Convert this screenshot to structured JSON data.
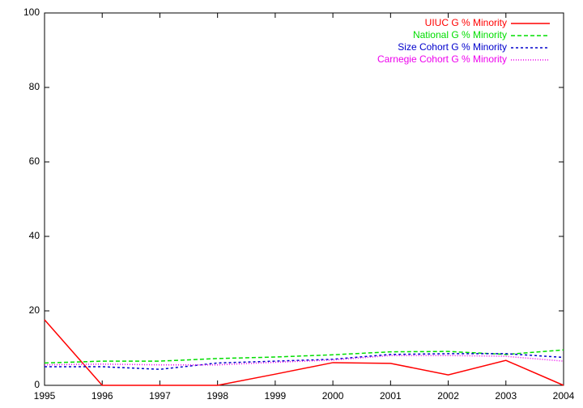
{
  "chart_data": {
    "type": "line",
    "x": [
      1995,
      1996,
      1997,
      1998,
      1999,
      2000,
      2001,
      2002,
      2003,
      2004
    ],
    "series": [
      {
        "name": "UIUC G % Minority",
        "color": "#ff0000",
        "values": [
          17.6,
          0,
          0,
          0,
          3.0,
          6.1,
          5.9,
          2.8,
          6.7,
          0
        ]
      },
      {
        "name": "National G % Minority",
        "color": "#00dd00",
        "values": [
          6.0,
          6.5,
          6.5,
          7.2,
          7.6,
          8.2,
          9.0,
          9.1,
          8.3,
          9.5
        ]
      },
      {
        "name": "Size Cohort G % Minority",
        "color": "#0000cc",
        "values": [
          5.0,
          5.0,
          4.3,
          6.0,
          6.5,
          7.0,
          8.3,
          8.5,
          8.5,
          7.5
        ]
      },
      {
        "name": "Carnegie Cohort G % Minority",
        "color": "#ee00ee",
        "values": [
          5.5,
          5.7,
          5.5,
          5.5,
          6.2,
          6.8,
          8.0,
          8.0,
          7.8,
          6.5
        ]
      }
    ],
    "xlim": [
      1995,
      2004
    ],
    "xticks": [
      1995,
      1996,
      1997,
      1998,
      1999,
      2000,
      2001,
      2002,
      2003,
      2004
    ],
    "ylim": [
      0,
      100
    ],
    "yticks": [
      0,
      20,
      40,
      60,
      80,
      100
    ],
    "grid": false,
    "legend": "top-right"
  }
}
